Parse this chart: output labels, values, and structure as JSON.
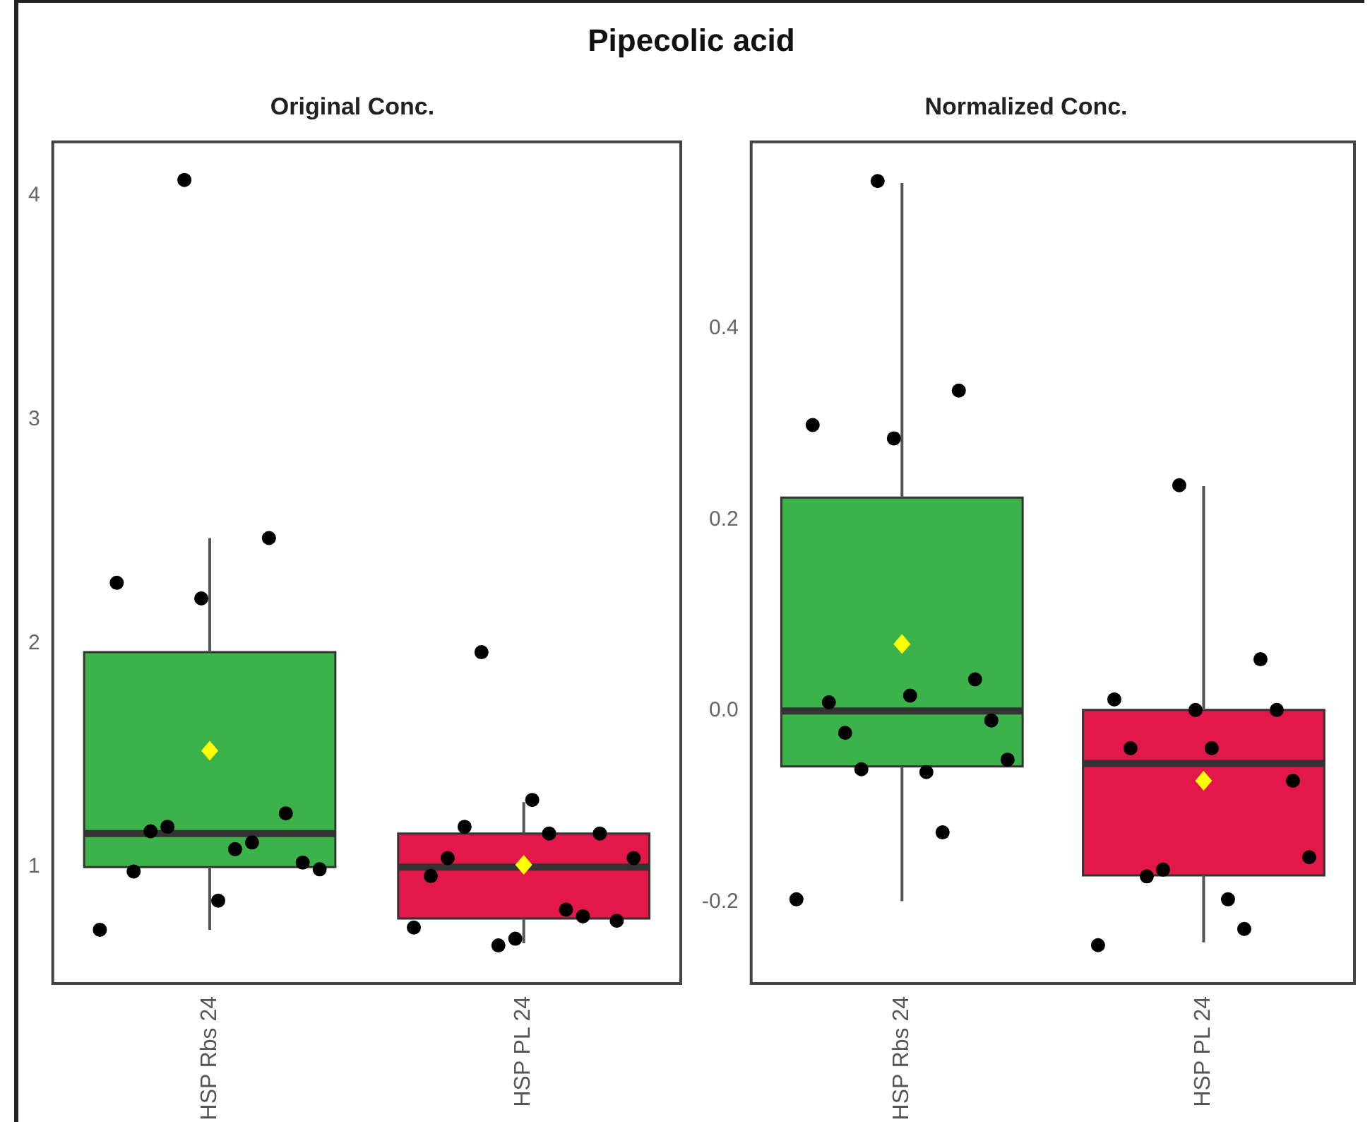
{
  "chart_data": [
    {
      "type": "box",
      "title": "Original Conc.",
      "annotations": [
        "Pipecolic acid"
      ],
      "categories": [
        "HSP Rbs 24",
        "HSP PL 24"
      ],
      "colors": [
        "#3cb34a",
        "#e2184a"
      ],
      "boxes": [
        {
          "low": 0.72,
          "q1": 1.0,
          "median": 1.15,
          "q3": 1.96,
          "high": 2.47,
          "mean": 1.52
        },
        {
          "low": 0.66,
          "q1": 0.77,
          "median": 1.0,
          "q3": 1.15,
          "high": 1.29,
          "mean": 1.01
        }
      ],
      "series": [
        {
          "type": "scatter",
          "color": "#000000",
          "x": [
            "HSP Rbs 24",
            "HSP Rbs 24",
            "HSP Rbs 24",
            "HSP Rbs 24",
            "HSP Rbs 24",
            "HSP Rbs 24",
            "HSP Rbs 24",
            "HSP Rbs 24",
            "HSP Rbs 24",
            "HSP Rbs 24",
            "HSP Rbs 24",
            "HSP Rbs 24",
            "HSP Rbs 24",
            "HSP Rbs 24",
            "HSP PL 24",
            "HSP PL 24",
            "HSP PL 24",
            "HSP PL 24",
            "HSP PL 24",
            "HSP PL 24",
            "HSP PL 24",
            "HSP PL 24",
            "HSP PL 24",
            "HSP PL 24",
            "HSP PL 24",
            "HSP PL 24",
            "HSP PL 24",
            "HSP PL 24"
          ],
          "values": [
            4.07,
            2.47,
            2.27,
            2.2,
            1.24,
            0.98,
            0.85,
            1.02,
            1.16,
            1.08,
            0.99,
            1.18,
            1.11,
            0.72,
            0.65,
            0.78,
            0.96,
            0.68,
            1.15,
            1.04,
            1.3,
            0.76,
            1.18,
            1.15,
            1.04,
            1.96,
            0.81,
            0.73
          ]
        }
      ],
      "ylim": [
        0.48,
        4.24
      ],
      "yticks": [
        1,
        2,
        3,
        4
      ]
    },
    {
      "type": "box",
      "title": "Normalized Conc.",
      "categories": [
        "HSP Rbs 24",
        "HSP PL 24"
      ],
      "colors": [
        "#3cb34a",
        "#e2184a"
      ],
      "boxes": [
        {
          "low": -0.199,
          "q1": -0.058,
          "median": 0.0,
          "q3": 0.223,
          "high": 0.552,
          "mean": 0.07
        },
        {
          "low": -0.242,
          "q1": -0.172,
          "median": -0.055,
          "q3": 0.001,
          "high": 0.235,
          "mean": -0.073
        }
      ],
      "series": [
        {
          "type": "scatter",
          "color": "#000000",
          "x": [
            "HSP Rbs 24",
            "HSP Rbs 24",
            "HSP Rbs 24",
            "HSP Rbs 24",
            "HSP Rbs 24",
            "HSP Rbs 24",
            "HSP Rbs 24",
            "HSP Rbs 24",
            "HSP Rbs 24",
            "HSP Rbs 24",
            "HSP Rbs 24",
            "HSP Rbs 24",
            "HSP Rbs 24",
            "HSP Rbs 24",
            "HSP PL 24",
            "HSP PL 24",
            "HSP PL 24",
            "HSP PL 24",
            "HSP PL 24",
            "HSP PL 24",
            "HSP PL 24",
            "HSP PL 24",
            "HSP PL 24",
            "HSP PL 24",
            "HSP PL 24",
            "HSP PL 24",
            "HSP PL 24",
            "HSP PL 24"
          ],
          "values": [
            0.554,
            0.335,
            0.299,
            0.285,
            0.033,
            0.009,
            0.016,
            -0.01,
            -0.023,
            -0.064,
            -0.051,
            -0.061,
            -0.127,
            -0.197,
            0.236,
            0.054,
            0.012,
            0.001,
            0.001,
            -0.039,
            -0.039,
            -0.073,
            -0.173,
            -0.197,
            -0.153,
            -0.166,
            -0.228,
            -0.245
          ]
        }
      ],
      "ylim": [
        -0.285,
        0.595
      ],
      "yticks": [
        -0.2,
        {
          "value": 0,
          "label": "0.0"
        },
        0.2,
        0.4
      ]
    }
  ]
}
